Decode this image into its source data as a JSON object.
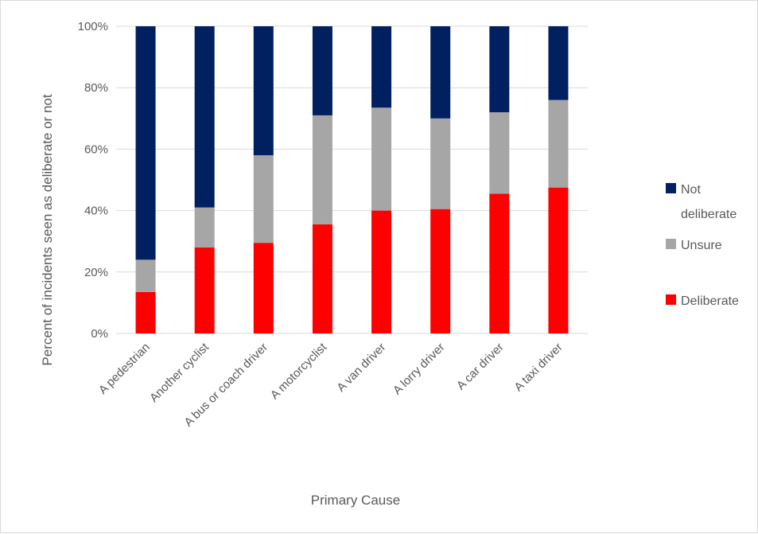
{
  "chart_data": {
    "type": "bar",
    "stacked": true,
    "percent": true,
    "categories": [
      "A pedestrian",
      "Another cyclist",
      "A bus or coach driver",
      "A motorcyclist",
      "A van driver",
      "A lorry driver",
      "A car driver",
      "A taxi driver"
    ],
    "series": [
      {
        "name": "Deliberate",
        "color": "#ff0000",
        "values": [
          13.5,
          28,
          29.5,
          35.5,
          40,
          40.5,
          45.5,
          47.5
        ]
      },
      {
        "name": "Unsure",
        "color": "#a6a6a6",
        "values": [
          10.5,
          13,
          28.5,
          35.5,
          33.5,
          29.5,
          26.5,
          28.5
        ]
      },
      {
        "name": "Not deliberate",
        "color": "#002060",
        "values": [
          76,
          59,
          42,
          29,
          26.5,
          30,
          28,
          24
        ]
      }
    ],
    "legend_labels": {
      "not_deliberate_line1": "Not",
      "not_deliberate_line2": "deliberate",
      "unsure": "Unsure",
      "deliberate": "Deliberate"
    },
    "y_ticks": [
      "0%",
      "20%",
      "40%",
      "60%",
      "80%",
      "100%"
    ],
    "ylim": [
      0,
      100
    ],
    "xlabel": "Primary Cause",
    "ylabel": "Percent  of incidents seen as deliberate or not",
    "grid": true,
    "legend_position": "right"
  }
}
